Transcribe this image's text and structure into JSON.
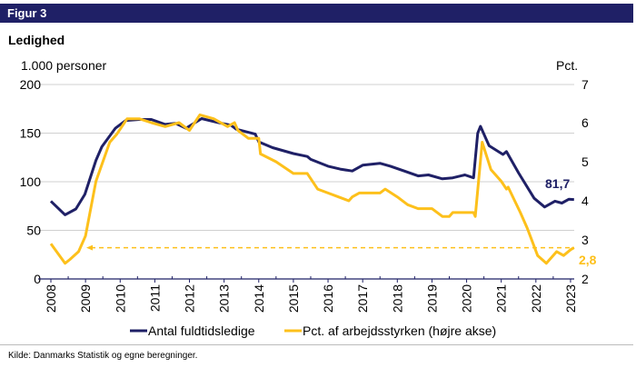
{
  "header": {
    "figure_label": "Figur 3"
  },
  "source": "Kilde:  Danmarks Statistik og egne beregninger.",
  "colors": {
    "header_bg": "#1f2066",
    "series_blue": "#1f2066",
    "series_yellow": "#fdc01b",
    "grid": "#d0d0d0"
  },
  "chart_data": {
    "type": "line",
    "title": "Ledighed",
    "ylabel_left": "1.000 personer",
    "ylabel_right": "Pct.",
    "ylim_left": [
      0,
      200
    ],
    "ylim_right": [
      2,
      7
    ],
    "yticks_left": [
      "0",
      "50",
      "100",
      "150",
      "200"
    ],
    "yticks_right": [
      "2",
      "3",
      "4",
      "5",
      "6",
      "7"
    ],
    "xlim": [
      2008,
      2023.1
    ],
    "xticks": [
      "2008",
      "2009",
      "2010",
      "2011",
      "2012",
      "2013",
      "2014",
      "2015",
      "2016",
      "2017",
      "2018",
      "2019",
      "2020",
      "2021",
      "2022",
      "2023"
    ],
    "grid": true,
    "legend_position": "bottom",
    "series": [
      {
        "name": "Antal fuldtidsledige",
        "axis": "left",
        "color": "#1f2066",
        "x": [
          2008.0,
          2008.41,
          2008.72,
          2008.98,
          2009.3,
          2009.47,
          2009.86,
          2010.16,
          2010.55,
          2010.9,
          2011.3,
          2011.6,
          2011.9,
          2012.35,
          2012.8,
          2013.2,
          2013.35,
          2013.9,
          2014.0,
          2014.4,
          2015.0,
          2015.4,
          2015.5,
          2016.0,
          2016.35,
          2016.7,
          2017.0,
          2017.5,
          2017.8,
          2018.2,
          2018.6,
          2018.9,
          2019.3,
          2019.6,
          2019.95,
          2020.2,
          2020.32,
          2020.4,
          2020.65,
          2021.05,
          2021.15,
          2021.5,
          2021.95,
          2022.25,
          2022.55,
          2022.75,
          2022.95,
          2023.1
        ],
        "y": [
          80,
          66,
          72,
          87,
          122,
          136,
          155,
          163,
          164,
          164,
          159,
          160,
          155,
          165,
          161,
          158,
          154,
          149,
          141,
          135,
          129,
          126,
          123,
          116,
          113,
          111,
          117,
          119,
          116,
          111,
          106,
          107,
          103,
          104,
          107,
          104,
          150,
          157,
          137,
          128,
          131,
          109,
          83,
          74,
          80,
          78,
          82,
          81.7
        ]
      },
      {
        "name": "Pct. af arbejdsstyrken (højre akse)",
        "axis": "right",
        "color": "#fdc01b",
        "x": [
          2008.0,
          2008.41,
          2008.55,
          2008.8,
          2009.0,
          2009.3,
          2009.5,
          2009.7,
          2009.9,
          2010.2,
          2010.55,
          2010.9,
          2011.3,
          2011.7,
          2012.0,
          2012.3,
          2012.7,
          2013.1,
          2013.3,
          2013.4,
          2013.7,
          2014.0,
          2014.05,
          2014.5,
          2015.0,
          2015.4,
          2015.7,
          2016.0,
          2016.3,
          2016.6,
          2016.7,
          2016.9,
          2017.5,
          2017.65,
          2018.0,
          2018.3,
          2018.6,
          2019.0,
          2019.3,
          2019.5,
          2019.6,
          2020.2,
          2020.25,
          2020.45,
          2020.7,
          2021.0,
          2021.15,
          2021.2,
          2021.55,
          2021.75,
          2022.05,
          2022.3,
          2022.6,
          2022.8,
          2023.0,
          2023.1
        ],
        "y": [
          2.9,
          2.4,
          2.5,
          2.7,
          3.1,
          4.5,
          5.0,
          5.5,
          5.7,
          6.1,
          6.1,
          6.0,
          5.9,
          6.0,
          5.8,
          6.2,
          6.1,
          5.9,
          6.0,
          5.8,
          5.6,
          5.6,
          5.2,
          5.0,
          4.7,
          4.7,
          4.3,
          4.2,
          4.1,
          4.0,
          4.1,
          4.2,
          4.2,
          4.3,
          4.1,
          3.9,
          3.8,
          3.8,
          3.6,
          3.6,
          3.7,
          3.7,
          3.6,
          5.5,
          4.8,
          4.5,
          4.3,
          4.35,
          3.7,
          3.3,
          2.6,
          2.4,
          2.7,
          2.6,
          2.75,
          2.8
        ]
      }
    ],
    "annotations": {
      "last_left": "81,7",
      "last_right": "2,8",
      "reference_line_right": 2.8
    }
  }
}
